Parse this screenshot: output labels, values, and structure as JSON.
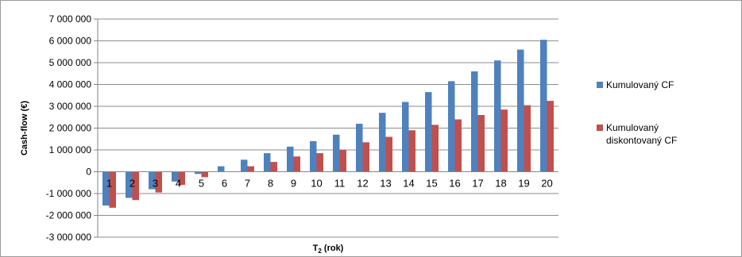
{
  "chart_data": {
    "type": "bar",
    "title": "",
    "xlabel": "T2 (rok)",
    "xlabel_main": "T",
    "xlabel_sub": "2",
    "xlabel_rest": " (rok)",
    "ylabel": "Cash-flow (€)",
    "ylim": [
      -3000000,
      7000000
    ],
    "yticks": [
      7000000,
      6000000,
      5000000,
      4000000,
      3000000,
      2000000,
      1000000,
      0,
      -1000000,
      -2000000,
      -3000000
    ],
    "ytick_labels": [
      "7 000 000",
      "6 000 000",
      "5 000 000",
      "4 000 000",
      "3 000 000",
      "2 000 000",
      "1 000 000",
      "0",
      "-1 000 000",
      "-2 000 000",
      "-3 000 000"
    ],
    "grid": true,
    "legend_position": "right",
    "categories": [
      "1",
      "2",
      "3",
      "4",
      "5",
      "6",
      "7",
      "8",
      "9",
      "10",
      "11",
      "12",
      "13",
      "14",
      "15",
      "16",
      "17",
      "18",
      "19",
      "20"
    ],
    "series": [
      {
        "name": "Kumulovaný CF",
        "legend_lines": [
          "Kumulovaný CF"
        ],
        "color": "#4f81bd",
        "values": [
          -1550000,
          -1200000,
          -800000,
          -450000,
          -100000,
          250000,
          550000,
          850000,
          1150000,
          1400000,
          1700000,
          2200000,
          2700000,
          3200000,
          3650000,
          4150000,
          4600000,
          5100000,
          5600000,
          6050000
        ]
      },
      {
        "name": "Kumulovaný diskontovaný CF",
        "legend_lines": [
          "Kumulovaný",
          "diskontovaný  CF"
        ],
        "color": "#c0504d",
        "values": [
          -1650000,
          -1300000,
          -950000,
          -600000,
          -250000,
          0,
          250000,
          450000,
          700000,
          850000,
          1000000,
          1350000,
          1600000,
          1900000,
          2150000,
          2400000,
          2600000,
          2850000,
          3050000,
          3250000
        ]
      }
    ]
  }
}
